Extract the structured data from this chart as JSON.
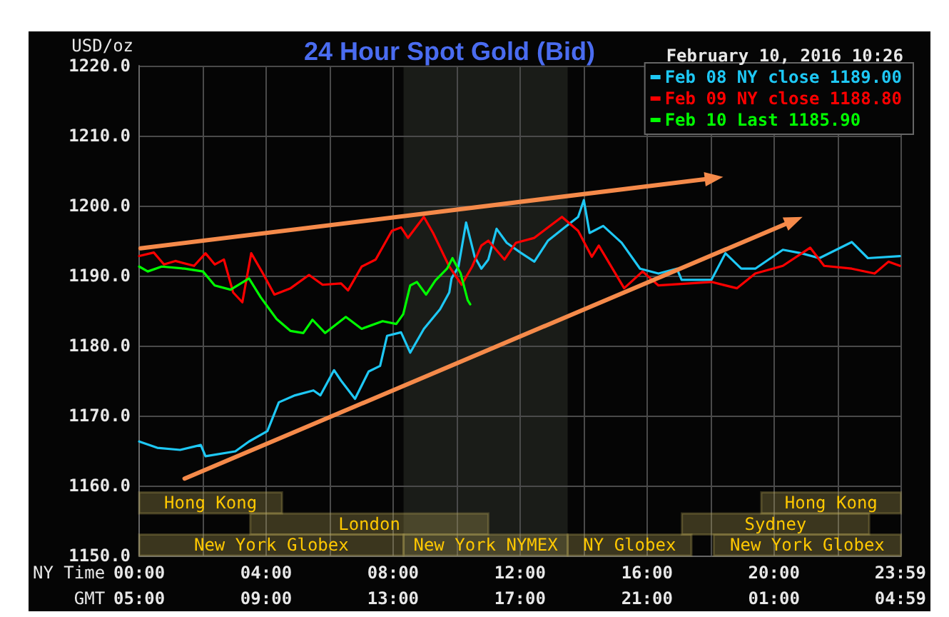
{
  "chart_data": {
    "type": "line",
    "title": "24 Hour Spot Gold (Bid)",
    "subtitle": "February 10, 2016 10:26",
    "ylabel": "USD/oz",
    "xlabel": "NY Time",
    "x2label": "GMT",
    "xlim": [
      0,
      24
    ],
    "xticks": [
      {
        "value": 0,
        "label": "00:00"
      },
      {
        "value": 2,
        "label": null
      },
      {
        "value": 4,
        "label": "04:00"
      },
      {
        "value": 6,
        "label": null
      },
      {
        "value": 8,
        "label": "08:00"
      },
      {
        "value": 10,
        "label": null
      },
      {
        "value": 12,
        "label": "12:00"
      },
      {
        "value": 14,
        "label": null
      },
      {
        "value": 16,
        "label": "16:00"
      },
      {
        "value": 18,
        "label": null
      },
      {
        "value": 20,
        "label": "20:00"
      },
      {
        "value": 22,
        "label": null
      },
      {
        "value": 23.983,
        "label": "23:59"
      }
    ],
    "x2lim": [
      "2016-02-10T05:00",
      "2016-02-11T05:00"
    ],
    "x2ticks": [
      {
        "value": "2016-02-10T05:00",
        "label": "05:00"
      },
      {
        "value": "2016-02-10T09:00",
        "label": "09:00"
      },
      {
        "value": "2016-02-10T13:00",
        "label": "13:00"
      },
      {
        "value": "2016-02-10T17:00",
        "label": "17:00"
      },
      {
        "value": "2016-02-10T21:00",
        "label": "21:00"
      },
      {
        "value": "2016-02-11T01:00",
        "label": "01:00"
      },
      {
        "value": "2016-02-11T04:59",
        "label": "04:59"
      }
    ],
    "ylim": [
      1150,
      1220
    ],
    "yticks": [
      {
        "value": 1150,
        "label": "1150.0"
      },
      {
        "value": 1160,
        "label": "1160.0"
      },
      {
        "value": 1170,
        "label": "1170.0"
      },
      {
        "value": 1180,
        "label": "1180.0"
      },
      {
        "value": 1190,
        "label": "1190.0"
      },
      {
        "value": 1200,
        "label": "1200.0"
      },
      {
        "value": 1210,
        "label": "1210.0"
      },
      {
        "value": 1220,
        "label": "1220.0"
      }
    ],
    "grid": true,
    "legend": "top right",
    "marker": "none",
    "bands": [
      {
        "axis": "x",
        "from": 8.33,
        "to": 13.5,
        "color": "#1a1c18"
      },
      {
        "axis": "x",
        "from": 0,
        "to": 4.5,
        "label": "Hong Kong",
        "color": "#b8a858"
      },
      {
        "axis": "x",
        "from": 19.6,
        "to": 24,
        "label": "Hong Kong",
        "color": "#b8a858"
      },
      {
        "axis": "x",
        "from": 3.5,
        "to": 11,
        "label": "London",
        "color": "#b8a858"
      },
      {
        "axis": "x",
        "from": 17.1,
        "to": 23,
        "label": "Sydney",
        "color": "#b8a858"
      },
      {
        "axis": "x",
        "from": 0,
        "to": 8.33,
        "label": "New York Globex",
        "color": "#b8a858"
      },
      {
        "axis": "x",
        "from": 8.33,
        "to": 13.5,
        "label": "New York NYMEX",
        "color": "#b8a858"
      },
      {
        "axis": "x",
        "from": 13.5,
        "to": 17.4,
        "label": "NY Globex",
        "color": "#b8a858"
      },
      {
        "axis": "x",
        "from": 18.1,
        "to": 24,
        "label": "New York Globex",
        "color": "#b8a858"
      }
    ],
    "series": [
      {
        "name": "Feb 08 NY close 1189.00",
        "color": "#1ec8f5",
        "x": [
          0,
          0.57,
          1.29,
          1.94,
          2.09,
          3.03,
          3.46,
          4.04,
          4.4,
          4.91,
          5.49,
          5.71,
          6.14,
          6.36,
          6.8,
          7.23,
          7.59,
          7.81,
          8.25,
          8.54,
          8.97,
          9.48,
          9.77,
          9.84,
          10.06,
          10.3,
          10.57,
          10.78,
          11.0,
          11.26,
          11.58,
          12.01,
          12.45,
          12.88,
          13.46,
          13.83,
          14.01,
          14.19,
          14.62,
          15.2,
          15.78,
          16.36,
          16.94,
          17.09,
          18.03,
          18.47,
          18.97,
          19.41,
          20.28,
          20.86,
          21.43,
          22.45,
          22.96,
          23.97
        ],
        "values": [
          1166.3,
          1165.4,
          1165.1,
          1165.8,
          1164.2,
          1164.9,
          1166.3,
          1167.8,
          1171.9,
          1172.9,
          1173.6,
          1172.9,
          1176.5,
          1175.0,
          1172.4,
          1176.3,
          1177.1,
          1181.4,
          1181.9,
          1179.0,
          1182.4,
          1185.2,
          1187.6,
          1189.6,
          1191.3,
          1197.6,
          1192.7,
          1191.0,
          1192.3,
          1196.7,
          1194.7,
          1193.3,
          1192.0,
          1195.0,
          1197.1,
          1198.4,
          1200.8,
          1196.1,
          1197.1,
          1194.7,
          1191.0,
          1190.3,
          1191.0,
          1189.4,
          1189.4,
          1193.2,
          1191.0,
          1191.0,
          1193.7,
          1193.2,
          1192.5,
          1194.8,
          1192.5,
          1192.8
        ]
      },
      {
        "name": "Feb 09 NY close 1188.80",
        "color": "#ff0000",
        "x": [
          0,
          0.46,
          0.78,
          1.14,
          1.73,
          2.09,
          2.38,
          2.67,
          2.96,
          3.25,
          3.53,
          3.9,
          4.26,
          4.77,
          5.35,
          5.78,
          6.36,
          6.58,
          7.01,
          7.45,
          7.96,
          8.25,
          8.47,
          8.97,
          9.26,
          9.77,
          10.16,
          10.49,
          10.78,
          11.0,
          11.51,
          11.87,
          12.45,
          13.32,
          13.83,
          14.26,
          14.48,
          15.28,
          15.86,
          16.36,
          18.03,
          18.83,
          19.41,
          20.28,
          21.14,
          21.58,
          22.45,
          23.17,
          23.61,
          23.97
        ],
        "values": [
          1192.8,
          1193.3,
          1191.6,
          1192.1,
          1191.4,
          1193.2,
          1191.6,
          1192.3,
          1187.6,
          1186.2,
          1193.2,
          1190.3,
          1187.3,
          1188.2,
          1190.1,
          1188.7,
          1188.9,
          1187.9,
          1191.3,
          1192.3,
          1196.4,
          1196.9,
          1195.4,
          1198.4,
          1196.1,
          1191.3,
          1188.7,
          1191.3,
          1194.3,
          1195.0,
          1192.3,
          1194.7,
          1195.4,
          1198.4,
          1196.4,
          1192.7,
          1194.3,
          1188.2,
          1190.6,
          1188.6,
          1189.1,
          1188.2,
          1190.3,
          1191.4,
          1194.0,
          1191.4,
          1191.0,
          1190.3,
          1192.0,
          1191.4
        ]
      },
      {
        "name": "Feb 10 Last 1185.90",
        "color": "#00ff00",
        "x": [
          0,
          0.27,
          0.71,
          1.43,
          2.01,
          2.38,
          2.88,
          3.46,
          3.83,
          4.33,
          4.77,
          5.17,
          5.46,
          5.86,
          6.51,
          7.01,
          7.67,
          8.1,
          8.32,
          8.54,
          8.75,
          9.04,
          9.33,
          9.7,
          9.87,
          10.13,
          10.35,
          10.43
        ],
        "values": [
          1191.3,
          1190.6,
          1191.3,
          1191.0,
          1190.6,
          1188.6,
          1188.0,
          1189.6,
          1186.9,
          1183.8,
          1182.1,
          1181.8,
          1183.7,
          1181.8,
          1184.1,
          1182.4,
          1183.5,
          1183.1,
          1184.5,
          1188.6,
          1189.1,
          1187.3,
          1189.3,
          1191.0,
          1192.5,
          1190.3,
          1186.5,
          1185.9
        ]
      }
    ]
  }
}
